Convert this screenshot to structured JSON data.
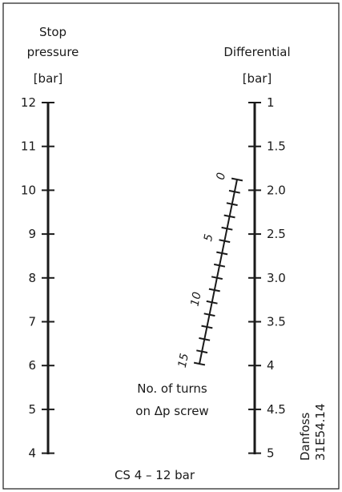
{
  "left_scale": {
    "title_line1": "Stop",
    "title_line2": "pressure",
    "unit": "[bar]",
    "values": [
      "12",
      "11",
      "10",
      "9",
      "8",
      "7",
      "6",
      "5",
      "4"
    ]
  },
  "right_scale": {
    "title": "Differential",
    "unit": "[bar]",
    "values": [
      "1",
      "1.5",
      "2.0",
      "2.5",
      "3.0",
      "3.5",
      "4",
      "4.5",
      "5"
    ]
  },
  "turns_scale": {
    "labels": [
      "0",
      "5",
      "10",
      "15"
    ],
    "total_turns": 15
  },
  "caption_line1": "No. of turns",
  "caption_line2": "on Δp screw",
  "side_label_line1": "Danfoss",
  "side_label_line2": "31E54.14",
  "footer": "CS 4 – 12 bar"
}
